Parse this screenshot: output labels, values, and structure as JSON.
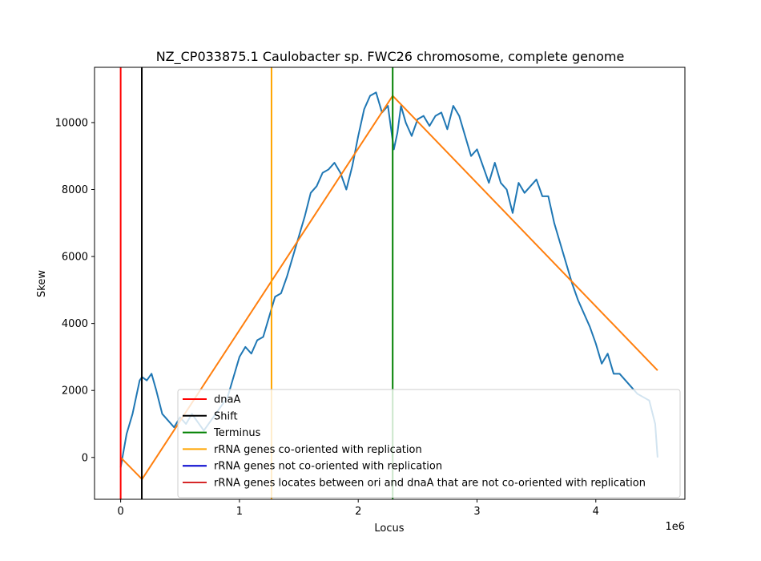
{
  "chart_data": {
    "type": "line",
    "title": "NZ_CP033875.1 Caulobacter sp. FWC26 chromosome, complete genome",
    "xlabel": "Locus",
    "ylabel": "Skew",
    "x_offset_label": "1e6",
    "xlim": [
      -0.22,
      4.75
    ],
    "ylim": [
      -1250,
      11650
    ],
    "x_ticks": [
      {
        "value": 0,
        "label": "0"
      },
      {
        "value": 1,
        "label": "1"
      },
      {
        "value": 2,
        "label": "2"
      },
      {
        "value": 3,
        "label": "3"
      },
      {
        "value": 4,
        "label": "4"
      }
    ],
    "y_ticks": [
      {
        "value": 0,
        "label": "0"
      },
      {
        "value": 2000,
        "label": "2000"
      },
      {
        "value": 4000,
        "label": "4000"
      },
      {
        "value": 6000,
        "label": "6000"
      },
      {
        "value": 8000,
        "label": "8000"
      },
      {
        "value": 10000,
        "label": "10000"
      }
    ],
    "grid": false,
    "legend_position": "lower-right",
    "skew_series": {
      "color": "#1f77b4",
      "x": [
        0,
        0.05,
        0.1,
        0.13,
        0.16,
        0.18,
        0.22,
        0.26,
        0.3,
        0.35,
        0.4,
        0.45,
        0.5,
        0.55,
        0.6,
        0.7,
        0.8,
        0.9,
        0.95,
        1.0,
        1.05,
        1.1,
        1.15,
        1.2,
        1.25,
        1.3,
        1.35,
        1.4,
        1.45,
        1.5,
        1.55,
        1.6,
        1.65,
        1.7,
        1.75,
        1.8,
        1.85,
        1.9,
        1.95,
        2.0,
        2.05,
        2.1,
        2.15,
        2.2,
        2.25,
        2.3,
        2.33,
        2.36,
        2.4,
        2.45,
        2.5,
        2.55,
        2.6,
        2.65,
        2.7,
        2.75,
        2.8,
        2.85,
        2.9,
        2.95,
        3.0,
        3.05,
        3.1,
        3.15,
        3.2,
        3.25,
        3.3,
        3.35,
        3.4,
        3.45,
        3.5,
        3.55,
        3.6,
        3.65,
        3.7,
        3.75,
        3.8,
        3.85,
        3.9,
        3.95,
        4.0,
        4.05,
        4.1,
        4.15,
        4.2,
        4.25,
        4.3,
        4.35,
        4.4,
        4.45,
        4.5,
        4.52
      ],
      "y": [
        -300,
        700,
        1300,
        1800,
        2300,
        2400,
        2300,
        2500,
        2000,
        1300,
        1100,
        900,
        1200,
        1000,
        1300,
        800,
        1300,
        1800,
        2400,
        3000,
        3300,
        3100,
        3500,
        3600,
        4200,
        4800,
        4900,
        5400,
        6000,
        6600,
        7200,
        7900,
        8100,
        8500,
        8600,
        8800,
        8500,
        8000,
        8700,
        9600,
        10400,
        10800,
        10900,
        10300,
        10500,
        9200,
        9700,
        10500,
        10000,
        9600,
        10100,
        10200,
        9900,
        10200,
        10300,
        9800,
        10500,
        10200,
        9600,
        9000,
        9200,
        8700,
        8200,
        8800,
        8200,
        8000,
        7300,
        8200,
        7900,
        8100,
        8300,
        7800,
        7800,
        7000,
        6400,
        5800,
        5200,
        4700,
        4300,
        3900,
        3400,
        2800,
        3100,
        2500,
        2500,
        2300,
        2100,
        1900,
        1800,
        1700,
        1000,
        0
      ]
    },
    "fit_series": {
      "color": "#ff7f0e",
      "x": [
        0,
        0.18,
        2.29,
        4.52
      ],
      "y": [
        0,
        -650,
        10800,
        2600
      ]
    },
    "vlines": [
      {
        "x": 0,
        "color": "#ff0000",
        "legend": "dnaA"
      },
      {
        "x": 0.178,
        "color": "#000000",
        "legend": "Shift"
      },
      {
        "x": 2.29,
        "color": "#008000",
        "legend": "Terminus"
      },
      {
        "x": 1.27,
        "color": "#ffa500",
        "legend": "rRNA genes co-oriented with replication"
      }
    ],
    "legend": [
      {
        "label": "dnaA",
        "color": "#ff0000"
      },
      {
        "label": "Shift",
        "color": "#000000"
      },
      {
        "label": "Terminus",
        "color": "#008000"
      },
      {
        "label": "rRNA genes co-oriented with replication",
        "color": "#ffa500"
      },
      {
        "label": "rRNA genes not co-oriented with replication",
        "color": "#0000cd"
      },
      {
        "label": "rRNA genes locates between ori and dnaA that are not co-oriented with replication",
        "color": "#d62728"
      }
    ]
  }
}
